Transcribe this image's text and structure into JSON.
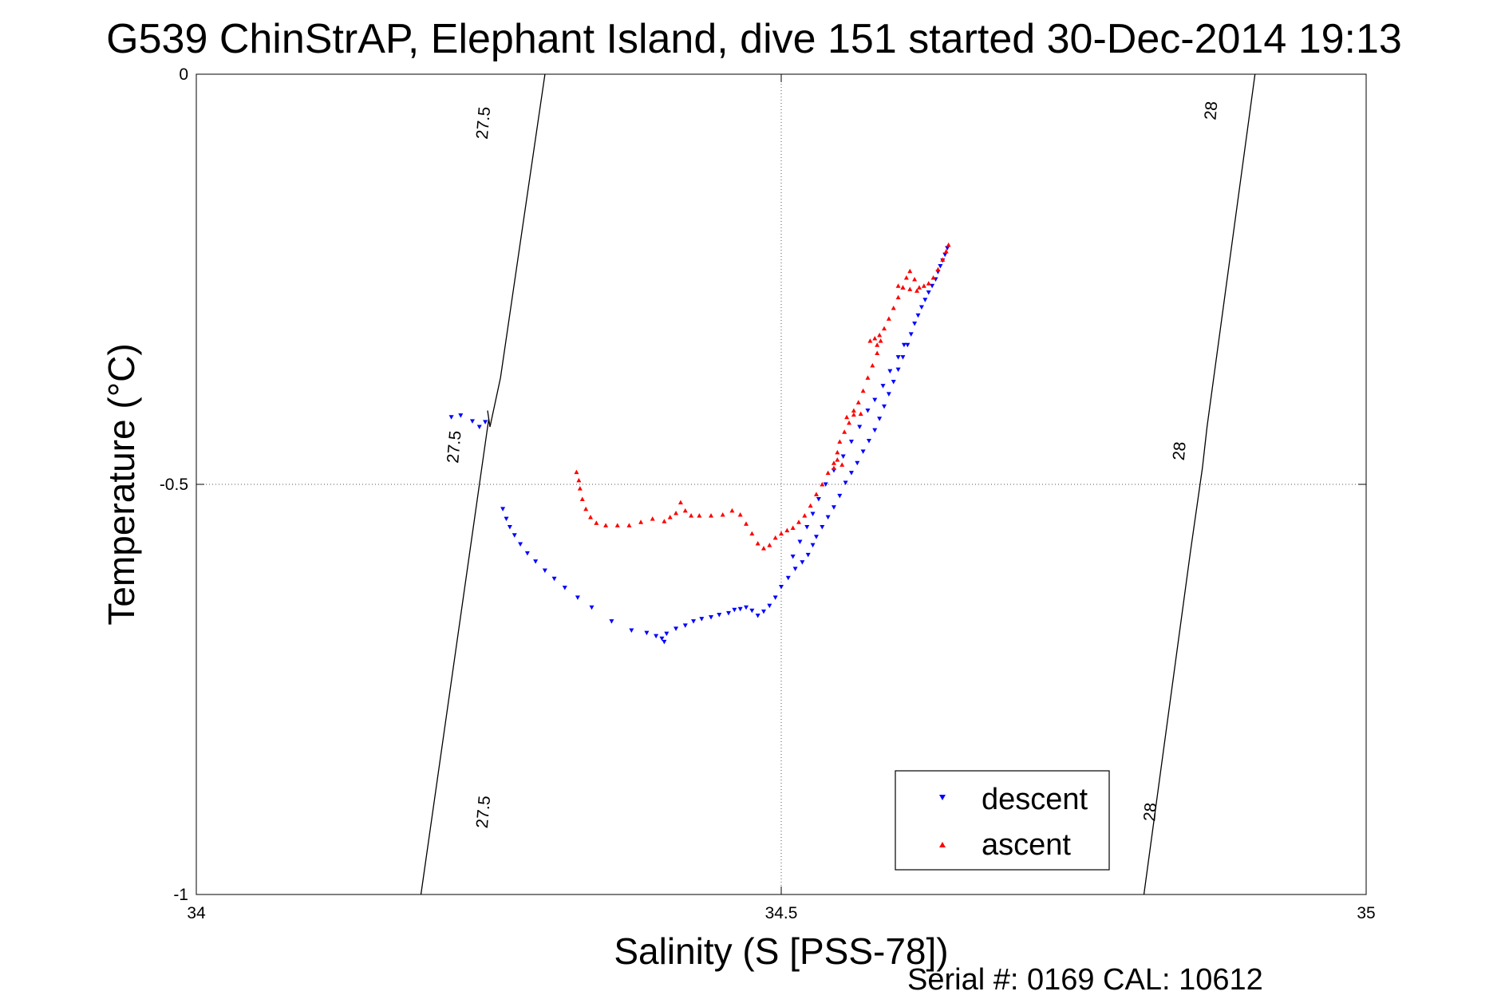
{
  "chart_data": {
    "type": "scatter",
    "title": "G539 ChinStrAP, Elephant Island, dive 151 started 30-Dec-2014 19:13",
    "xlabel": "Salinity (S [PSS-78])",
    "ylabel": "Temperature (°C)",
    "footer": "Serial #: 0169 CAL: 10612",
    "xlim": [
      34,
      35
    ],
    "ylim": [
      -1,
      0
    ],
    "xticks": [
      "34",
      "34.5",
      "35"
    ],
    "yticks": [
      "0",
      "-0.5",
      "-1"
    ],
    "grid": true,
    "legend_position": "bottom-right",
    "colors": {
      "descent": "#0000ff",
      "ascent": "#ff0000",
      "contour": "#000000"
    },
    "density_contours": [
      {
        "label": "27.5",
        "points": [
          [
            34.192,
            -1.0
          ],
          [
            34.25,
            -0.42
          ],
          [
            34.249,
            -0.41
          ],
          [
            34.251,
            -0.43
          ],
          [
            34.26,
            -0.37
          ],
          [
            34.298,
            0.0
          ]
        ]
      },
      {
        "label": "28",
        "points": [
          [
            34.81,
            -1.0
          ],
          [
            34.85,
            -0.58
          ],
          [
            34.86,
            -0.48
          ],
          [
            34.864,
            -0.43
          ],
          [
            34.905,
            0.0
          ]
        ]
      }
    ],
    "contour_labels": [
      {
        "text": "27.5",
        "x": 34.25,
        "y": -0.9
      },
      {
        "text": "27.5",
        "x": 34.225,
        "y": -0.455
      },
      {
        "text": "27.5",
        "x": 34.25,
        "y": -0.06
      },
      {
        "text": "28",
        "x": 34.82,
        "y": -0.9
      },
      {
        "text": "28",
        "x": 34.845,
        "y": -0.46
      },
      {
        "text": "28",
        "x": 34.872,
        "y": -0.045
      }
    ],
    "series": [
      {
        "name": "descent",
        "marker": "triangle-down",
        "color": "#0000ff",
        "points": [
          [
            34.218,
            -0.418
          ],
          [
            34.226,
            -0.416
          ],
          [
            34.236,
            -0.423
          ],
          [
            34.247,
            -0.424
          ],
          [
            34.242,
            -0.43
          ],
          [
            34.262,
            -0.53
          ],
          [
            34.265,
            -0.542
          ],
          [
            34.268,
            -0.552
          ],
          [
            34.272,
            -0.562
          ],
          [
            34.277,
            -0.573
          ],
          [
            34.283,
            -0.584
          ],
          [
            34.29,
            -0.594
          ],
          [
            34.298,
            -0.605
          ],
          [
            34.306,
            -0.615
          ],
          [
            34.315,
            -0.626
          ],
          [
            34.326,
            -0.638
          ],
          [
            34.338,
            -0.65
          ],
          [
            34.355,
            -0.667
          ],
          [
            34.372,
            -0.678
          ],
          [
            34.385,
            -0.681
          ],
          [
            34.393,
            -0.685
          ],
          [
            34.398,
            -0.688
          ],
          [
            34.4,
            -0.692
          ],
          [
            34.402,
            -0.682
          ],
          [
            34.41,
            -0.676
          ],
          [
            34.418,
            -0.672
          ],
          [
            34.425,
            -0.667
          ],
          [
            34.432,
            -0.664
          ],
          [
            34.44,
            -0.662
          ],
          [
            34.447,
            -0.659
          ],
          [
            34.455,
            -0.657
          ],
          [
            34.46,
            -0.653
          ],
          [
            34.465,
            -0.652
          ],
          [
            34.47,
            -0.65
          ],
          [
            34.475,
            -0.654
          ],
          [
            34.48,
            -0.66
          ],
          [
            34.485,
            -0.655
          ],
          [
            34.49,
            -0.648
          ],
          [
            34.495,
            -0.638
          ],
          [
            34.5,
            -0.625
          ],
          [
            34.506,
            -0.614
          ],
          [
            34.512,
            -0.603
          ],
          [
            34.518,
            -0.595
          ],
          [
            34.523,
            -0.586
          ],
          [
            34.527,
            -0.574
          ],
          [
            34.53,
            -0.564
          ],
          [
            34.535,
            -0.552
          ],
          [
            34.54,
            -0.54
          ],
          [
            34.545,
            -0.528
          ],
          [
            34.55,
            -0.514
          ],
          [
            34.555,
            -0.498
          ],
          [
            34.56,
            -0.486
          ],
          [
            34.565,
            -0.474
          ],
          [
            34.57,
            -0.46
          ],
          [
            34.575,
            -0.447
          ],
          [
            34.58,
            -0.434
          ],
          [
            34.584,
            -0.42
          ],
          [
            34.588,
            -0.405
          ],
          [
            34.592,
            -0.39
          ],
          [
            34.596,
            -0.375
          ],
          [
            34.6,
            -0.36
          ],
          [
            34.604,
            -0.345
          ],
          [
            34.608,
            -0.33
          ],
          [
            34.611,
            -0.317
          ],
          [
            34.614,
            -0.304
          ],
          [
            34.617,
            -0.294
          ],
          [
            34.62,
            -0.284
          ],
          [
            34.623,
            -0.275
          ],
          [
            34.626,
            -0.266
          ],
          [
            34.629,
            -0.258
          ],
          [
            34.632,
            -0.25
          ],
          [
            34.634,
            -0.241
          ],
          [
            34.636,
            -0.234
          ],
          [
            34.638,
            -0.227
          ],
          [
            34.64,
            -0.22
          ],
          [
            34.642,
            -0.212
          ],
          [
            34.605,
            -0.33
          ],
          [
            34.6,
            -0.345
          ],
          [
            34.593,
            -0.362
          ],
          [
            34.587,
            -0.38
          ],
          [
            34.58,
            -0.397
          ],
          [
            34.574,
            -0.41
          ],
          [
            34.567,
            -0.43
          ],
          [
            34.56,
            -0.448
          ],
          [
            34.553,
            -0.466
          ],
          [
            34.545,
            -0.483
          ],
          [
            34.538,
            -0.5
          ],
          [
            34.532,
            -0.518
          ],
          [
            34.527,
            -0.536
          ],
          [
            34.522,
            -0.552
          ],
          [
            34.516,
            -0.57
          ],
          [
            34.51,
            -0.588
          ]
        ]
      },
      {
        "name": "ascent",
        "marker": "triangle-up",
        "color": "#ff0000",
        "points": [
          [
            34.325,
            -0.485
          ],
          [
            34.327,
            -0.495
          ],
          [
            34.328,
            -0.505
          ],
          [
            34.33,
            -0.518
          ],
          [
            34.333,
            -0.53
          ],
          [
            34.337,
            -0.54
          ],
          [
            34.342,
            -0.547
          ],
          [
            34.35,
            -0.55
          ],
          [
            34.36,
            -0.55
          ],
          [
            34.37,
            -0.55
          ],
          [
            34.38,
            -0.546
          ],
          [
            34.39,
            -0.542
          ],
          [
            34.4,
            -0.545
          ],
          [
            34.405,
            -0.54
          ],
          [
            34.41,
            -0.535
          ],
          [
            34.414,
            -0.522
          ],
          [
            34.418,
            -0.532
          ],
          [
            34.423,
            -0.538
          ],
          [
            34.43,
            -0.538
          ],
          [
            34.44,
            -0.538
          ],
          [
            34.45,
            -0.537
          ],
          [
            34.458,
            -0.532
          ],
          [
            34.465,
            -0.537
          ],
          [
            34.47,
            -0.548
          ],
          [
            34.475,
            -0.56
          ],
          [
            34.48,
            -0.572
          ],
          [
            34.485,
            -0.578
          ],
          [
            34.49,
            -0.574
          ],
          [
            34.495,
            -0.565
          ],
          [
            34.5,
            -0.56
          ],
          [
            34.505,
            -0.556
          ],
          [
            34.51,
            -0.553
          ],
          [
            34.515,
            -0.546
          ],
          [
            34.52,
            -0.538
          ],
          [
            34.525,
            -0.526
          ],
          [
            34.53,
            -0.512
          ],
          [
            34.535,
            -0.5
          ],
          [
            34.54,
            -0.486
          ],
          [
            34.545,
            -0.474
          ],
          [
            34.548,
            -0.461
          ],
          [
            34.55,
            -0.448
          ],
          [
            34.554,
            -0.436
          ],
          [
            34.558,
            -0.425
          ],
          [
            34.562,
            -0.415
          ],
          [
            34.566,
            -0.4
          ],
          [
            34.57,
            -0.386
          ],
          [
            34.574,
            -0.37
          ],
          [
            34.578,
            -0.355
          ],
          [
            34.582,
            -0.34
          ],
          [
            34.585,
            -0.325
          ],
          [
            34.588,
            -0.31
          ],
          [
            34.592,
            -0.298
          ],
          [
            34.596,
            -0.285
          ],
          [
            34.6,
            -0.272
          ],
          [
            34.604,
            -0.26
          ],
          [
            34.607,
            -0.248
          ],
          [
            34.61,
            -0.24
          ],
          [
            34.614,
            -0.25
          ],
          [
            34.618,
            -0.26
          ],
          [
            34.622,
            -0.258
          ],
          [
            34.626,
            -0.255
          ],
          [
            34.63,
            -0.248
          ],
          [
            34.634,
            -0.238
          ],
          [
            34.638,
            -0.226
          ],
          [
            34.641,
            -0.216
          ],
          [
            34.643,
            -0.208
          ],
          [
            34.58,
            -0.322
          ],
          [
            34.584,
            -0.318
          ],
          [
            34.576,
            -0.325
          ],
          [
            34.582,
            -0.33
          ],
          [
            34.6,
            -0.258
          ],
          [
            34.604,
            -0.26
          ],
          [
            34.61,
            -0.262
          ],
          [
            34.616,
            -0.264
          ],
          [
            34.562,
            -0.41
          ],
          [
            34.568,
            -0.414
          ],
          [
            34.556,
            -0.418
          ],
          [
            34.548,
            -0.47
          ],
          [
            34.545,
            -0.48
          ],
          [
            34.552,
            -0.476
          ]
        ]
      }
    ]
  }
}
